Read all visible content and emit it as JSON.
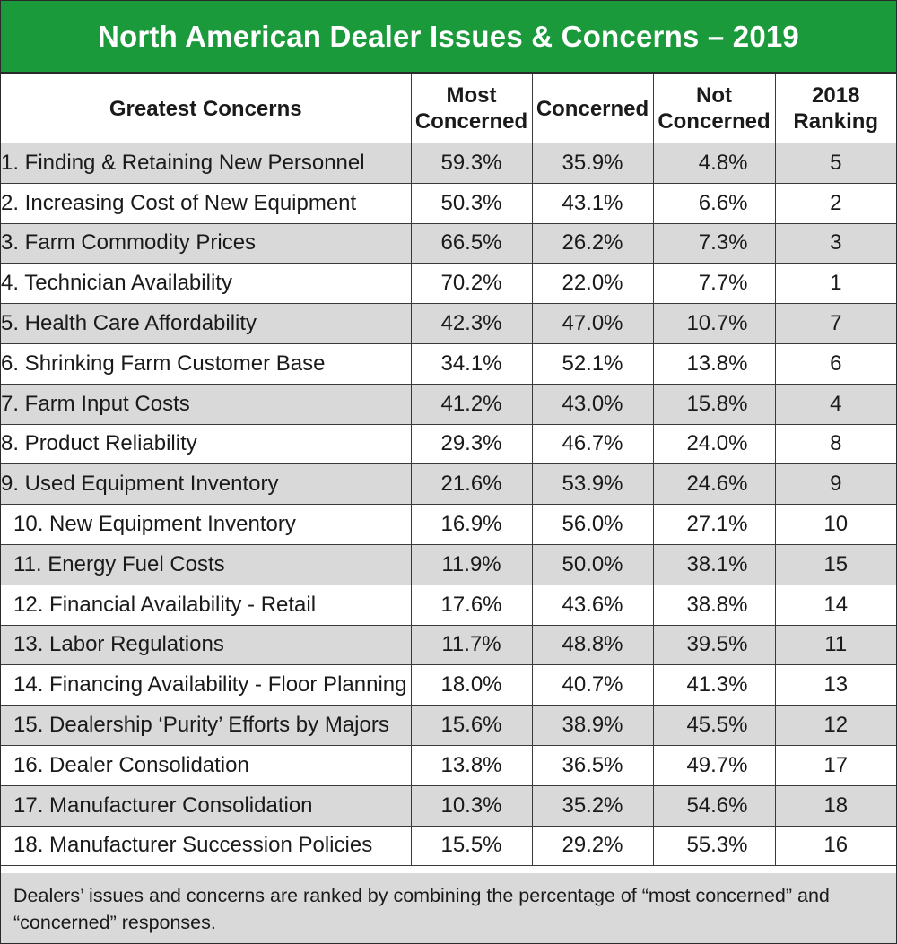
{
  "title": "North American Dealer Issues & Concerns – 2019",
  "columns": {
    "concern": "Greatest Concerns",
    "most": "Most Concerned",
    "concerned": "Concerned",
    "not": "Not Concerned",
    "rank": "2018 Ranking"
  },
  "rows": [
    {
      "concern": "1. Finding & Retaining New Personnel",
      "most": "59.3%",
      "concerned": "35.9%",
      "not": "4.8%",
      "rank": "5"
    },
    {
      "concern": "2. Increasing Cost of New Equipment",
      "most": "50.3%",
      "concerned": "43.1%",
      "not": "6.6%",
      "rank": "2"
    },
    {
      "concern": "3. Farm Commodity Prices",
      "most": "66.5%",
      "concerned": "26.2%",
      "not": "7.3%",
      "rank": "3"
    },
    {
      "concern": "4. Technician Availability",
      "most": "70.2%",
      "concerned": "22.0%",
      "not": "7.7%",
      "rank": "1"
    },
    {
      "concern": "5. Health Care Affordability",
      "most": "42.3%",
      "concerned": "47.0%",
      "not": "10.7%",
      "rank": "7"
    },
    {
      "concern": "6. Shrinking Farm Customer Base",
      "most": "34.1%",
      "concerned": "52.1%",
      "not": "13.8%",
      "rank": "6"
    },
    {
      "concern": "7. Farm Input Costs",
      "most": "41.2%",
      "concerned": "43.0%",
      "not": "15.8%",
      "rank": "4"
    },
    {
      "concern": "8. Product Reliability",
      "most": "29.3%",
      "concerned": "46.7%",
      "not": "24.0%",
      "rank": "8"
    },
    {
      "concern": "9. Used Equipment Inventory",
      "most": "21.6%",
      "concerned": "53.9%",
      "not": "24.6%",
      "rank": "9"
    },
    {
      "concern": "10. New Equipment Inventory",
      "most": "16.9%",
      "concerned": "56.0%",
      "not": "27.1%",
      "rank": "10"
    },
    {
      "concern": "11. Energy Fuel Costs",
      "most": "11.9%",
      "concerned": "50.0%",
      "not": "38.1%",
      "rank": "15"
    },
    {
      "concern": "12. Financial Availability - Retail",
      "most": "17.6%",
      "concerned": "43.6%",
      "not": "38.8%",
      "rank": "14"
    },
    {
      "concern": "13. Labor Regulations",
      "most": "11.7%",
      "concerned": "48.8%",
      "not": "39.5%",
      "rank": "11"
    },
    {
      "concern": "14. Financing Availability - Floor Planning",
      "most": "18.0%",
      "concerned": "40.7%",
      "not": "41.3%",
      "rank": "13"
    },
    {
      "concern": "15. Dealership ‘Purity’ Efforts by Majors",
      "most": "15.6%",
      "concerned": "38.9%",
      "not": "45.5%",
      "rank": "12"
    },
    {
      "concern": "16. Dealer Consolidation",
      "most": "13.8%",
      "concerned": "36.5%",
      "not": "49.7%",
      "rank": "17"
    },
    {
      "concern": "17. Manufacturer Consolidation",
      "most": "10.3%",
      "concerned": "35.2%",
      "not": "54.6%",
      "rank": "18"
    },
    {
      "concern": "18. Manufacturer Succession Policies",
      "most": "15.5%",
      "concerned": "29.2%",
      "not": "55.3%",
      "rank": "16"
    }
  ],
  "footnote": "Dealers’ issues and concerns are ranked by combining the percentage of “most concerned” and “concerned” responses."
}
